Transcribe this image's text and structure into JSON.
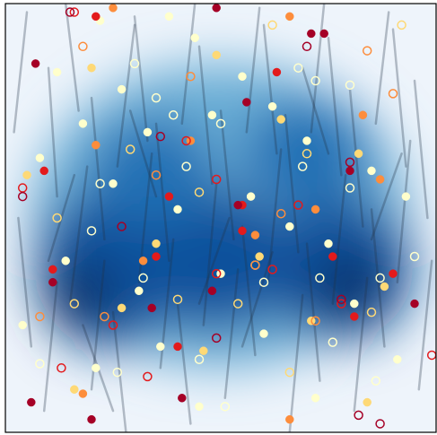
{
  "chart_data": {
    "type": "scatter",
    "xlim": [
      0,
      1
    ],
    "ylim": [
      0,
      1
    ],
    "segment_color": "#223344",
    "segments": {
      "x": [
        [
          0.02,
          0.05
        ],
        [
          0.06,
          0.03
        ],
        [
          0.09,
          0.12
        ],
        [
          0.12,
          0.1
        ],
        [
          0.15,
          0.19
        ],
        [
          0.17,
          0.14
        ],
        [
          0.2,
          0.23
        ],
        [
          0.23,
          0.2
        ],
        [
          0.26,
          0.3
        ],
        [
          0.28,
          0.25
        ],
        [
          0.31,
          0.34
        ],
        [
          0.33,
          0.3
        ],
        [
          0.36,
          0.39
        ],
        [
          0.38,
          0.35
        ],
        [
          0.41,
          0.44
        ],
        [
          0.43,
          0.4
        ],
        [
          0.46,
          0.49
        ],
        [
          0.48,
          0.45
        ],
        [
          0.51,
          0.54
        ],
        [
          0.53,
          0.5
        ],
        [
          0.56,
          0.59
        ],
        [
          0.58,
          0.55
        ],
        [
          0.61,
          0.64
        ],
        [
          0.63,
          0.6
        ],
        [
          0.66,
          0.69
        ],
        [
          0.68,
          0.65
        ],
        [
          0.71,
          0.74
        ],
        [
          0.73,
          0.7
        ],
        [
          0.76,
          0.79
        ],
        [
          0.78,
          0.75
        ],
        [
          0.81,
          0.84
        ],
        [
          0.83,
          0.8
        ],
        [
          0.86,
          0.89
        ],
        [
          0.88,
          0.85
        ],
        [
          0.91,
          0.94
        ],
        [
          0.93,
          0.9
        ],
        [
          0.96,
          0.99
        ],
        [
          0.98,
          0.95
        ],
        [
          0.1,
          0.16
        ],
        [
          0.35,
          0.29
        ],
        [
          0.55,
          0.62
        ],
        [
          0.75,
          0.69
        ],
        [
          0.45,
          0.52
        ],
        [
          0.25,
          0.18
        ],
        [
          0.85,
          0.92
        ]
      ],
      "y": [
        [
          0.7,
          0.98
        ],
        [
          0.2,
          0.5
        ],
        [
          0.05,
          0.35
        ],
        [
          0.55,
          0.85
        ],
        [
          0.3,
          0.62
        ],
        [
          0.75,
          1.0
        ],
        [
          0.1,
          0.4
        ],
        [
          0.45,
          0.78
        ],
        [
          0.62,
          0.95
        ],
        [
          0.0,
          0.28
        ],
        [
          0.35,
          0.65
        ],
        [
          0.68,
          0.97
        ],
        [
          0.15,
          0.45
        ],
        [
          0.4,
          0.72
        ],
        [
          0.72,
          1.0
        ],
        [
          0.02,
          0.3
        ],
        [
          0.25,
          0.58
        ],
        [
          0.58,
          0.9
        ],
        [
          0.08,
          0.38
        ],
        [
          0.45,
          0.75
        ],
        [
          0.7,
          0.99
        ],
        [
          0.18,
          0.48
        ],
        [
          0.35,
          0.66
        ],
        [
          0.65,
          0.95
        ],
        [
          0.0,
          0.32
        ],
        [
          0.42,
          0.74
        ],
        [
          0.7,
          1.0
        ],
        [
          0.12,
          0.44
        ],
        [
          0.3,
          0.6
        ],
        [
          0.6,
          0.92
        ],
        [
          0.05,
          0.36
        ],
        [
          0.48,
          0.8
        ],
        [
          0.72,
          0.98
        ],
        [
          0.2,
          0.52
        ],
        [
          0.35,
          0.68
        ],
        [
          0.62,
          0.94
        ],
        [
          0.1,
          0.4
        ],
        [
          0.5,
          0.82
        ],
        [
          0.4,
          0.6
        ],
        [
          0.55,
          0.75
        ],
        [
          0.2,
          0.42
        ],
        [
          0.65,
          0.85
        ],
        [
          0.3,
          0.5
        ],
        [
          0.05,
          0.25
        ],
        [
          0.45,
          0.65
        ]
      ]
    },
    "series": [
      {
        "color": "#ffffcc",
        "marker": "filled",
        "x": [
          0.22,
          0.38,
          0.44,
          0.12,
          0.27,
          0.55,
          0.62,
          0.18,
          0.33,
          0.48,
          0.08,
          0.7,
          0.85,
          0.93,
          0.25,
          0.4,
          0.57,
          0.66,
          0.75,
          0.14,
          0.31,
          0.5,
          0.81,
          0.04,
          0.36,
          0.6,
          0.91,
          0.21,
          0.45,
          0.72
        ],
        "values": [
          0.96,
          0.97,
          0.92,
          0.84,
          0.8,
          0.83,
          0.76,
          0.72,
          0.7,
          0.74,
          0.64,
          0.68,
          0.61,
          0.55,
          0.58,
          0.52,
          0.55,
          0.48,
          0.44,
          0.4,
          0.33,
          0.37,
          0.3,
          0.25,
          0.2,
          0.23,
          0.17,
          0.15,
          0.06,
          0.08
        ]
      },
      {
        "color": "#fed976",
        "marker": "filled",
        "x": [
          0.2,
          0.49,
          0.64,
          0.82,
          0.05,
          0.35,
          0.59,
          0.88,
          0.27,
          0.71,
          0.46,
          0.16,
          0.84
        ],
        "values": [
          0.85,
          0.88,
          0.73,
          0.65,
          0.6,
          0.44,
          0.41,
          0.34,
          0.29,
          0.26,
          0.19,
          0.1,
          0.07
        ]
      },
      {
        "color": "#fd8d3c",
        "marker": "filled",
        "x": [
          0.25,
          0.43,
          0.66,
          0.83,
          0.21,
          0.32,
          0.72,
          0.87,
          0.58,
          0.18,
          0.66
        ],
        "values": [
          0.99,
          0.68,
          0.97,
          0.74,
          0.67,
          0.4,
          0.52,
          0.59,
          0.46,
          0.09,
          0.03
        ]
      },
      {
        "color": "#e31a1c",
        "marker": "filled",
        "x": [
          0.21,
          0.63,
          0.09,
          0.38,
          0.55,
          0.9,
          0.35,
          0.55,
          0.11,
          0.81,
          0.4,
          0.76
        ],
        "values": [
          0.97,
          0.84,
          0.61,
          0.55,
          0.53,
          0.37,
          0.41,
          0.47,
          0.38,
          0.27,
          0.2,
          0.41
        ]
      },
      {
        "color": "#a50026",
        "marker": "filled",
        "x": [
          0.49,
          0.07,
          0.56,
          0.74,
          0.8,
          0.54,
          0.11,
          0.34,
          0.48,
          0.71,
          0.95,
          0.41,
          0.06,
          0.2
        ],
        "values": [
          0.99,
          0.86,
          0.77,
          0.93,
          0.61,
          0.53,
          0.35,
          0.29,
          0.33,
          0.93,
          0.3,
          0.08,
          0.07,
          0.03
        ]
      },
      {
        "color": "#ffffcc",
        "marker": "hollow",
        "x": [
          0.3,
          0.35,
          0.68,
          0.72,
          0.8,
          0.39,
          0.42,
          0.5,
          0.69,
          0.8,
          0.58,
          0.87,
          0.73,
          0.2,
          0.32,
          0.26,
          0.6,
          0.76,
          0.08,
          0.51,
          0.86,
          0.95,
          0.22,
          0.45
        ],
        "values": [
          0.86,
          0.78,
          0.85,
          0.82,
          0.81,
          0.74,
          0.62,
          0.72,
          0.62,
          0.57,
          0.39,
          0.36,
          0.36,
          0.47,
          0.36,
          0.14,
          0.35,
          0.21,
          0.16,
          0.06,
          0.12,
          0.41,
          0.58,
          0.17
        ]
      },
      {
        "color": "#fed976",
        "marker": "hollow",
        "x": [
          0.62,
          0.29,
          0.45,
          0.7,
          0.54,
          0.12,
          0.16,
          0.85,
          0.4,
          0.66,
          0.92
        ],
        "values": [
          0.95,
          0.66,
          0.56,
          0.65,
          0.3,
          0.5,
          0.3,
          0.28,
          0.31,
          0.14,
          0.95
        ]
      },
      {
        "color": "#fd8d3c",
        "marker": "hollow",
        "x": [
          0.18,
          0.43,
          0.35,
          0.64,
          0.58,
          0.9,
          0.08,
          0.72,
          0.23,
          0.84
        ],
        "values": [
          0.9,
          0.83,
          0.6,
          0.51,
          0.39,
          0.79,
          0.27,
          0.26,
          0.27,
          0.89
        ]
      },
      {
        "color": "#e31a1c",
        "marker": "hollow",
        "x": [
          0.16,
          0.42,
          0.49,
          0.62,
          0.49,
          0.25,
          0.68,
          0.78,
          0.04,
          0.33,
          0.13,
          0.99
        ],
        "values": [
          0.98,
          0.68,
          0.59,
          0.38,
          0.37,
          0.25,
          0.53,
          0.3,
          0.57,
          0.13,
          0.15,
          0.18
        ]
      },
      {
        "color": "#a50026",
        "marker": "hollow",
        "x": [
          0.15,
          0.7,
          0.36,
          0.8,
          0.04,
          0.78,
          0.27,
          0.49,
          0.82,
          0.87
        ],
        "values": [
          0.98,
          0.9,
          0.69,
          0.63,
          0.55,
          0.31,
          0.48,
          0.22,
          0.04,
          0.02
        ]
      }
    ]
  }
}
